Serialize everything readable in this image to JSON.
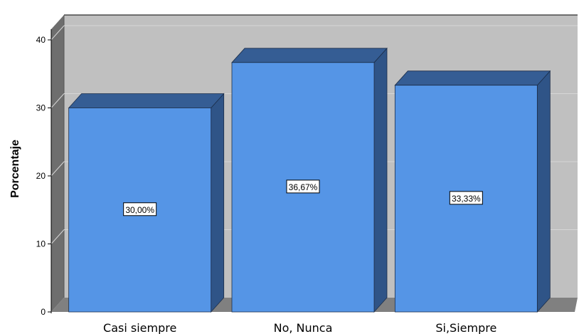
{
  "chart_data": {
    "type": "bar",
    "categories": [
      "Casi siempre",
      "No, Nunca",
      "Si,Siempre"
    ],
    "values": [
      30.0,
      36.67,
      33.33
    ],
    "data_labels": [
      "30,00%",
      "36,67%",
      "33,33%"
    ],
    "ylabel": "Porcentaje",
    "ylim": [
      0,
      40
    ],
    "yticks": [
      "0",
      "10",
      "20",
      "30",
      "40"
    ],
    "grid": true,
    "style": "3d",
    "colors": {
      "bar_front": "#5595e6",
      "bar_side": "#2f5487",
      "bar_top": "#355d94",
      "bar_edge": "#1c2e4a",
      "plot_back": "#c0c0c0",
      "plot_side": "#6e6e6e",
      "plot_floor": "#808080",
      "gridline": "#d6d6d6"
    }
  }
}
